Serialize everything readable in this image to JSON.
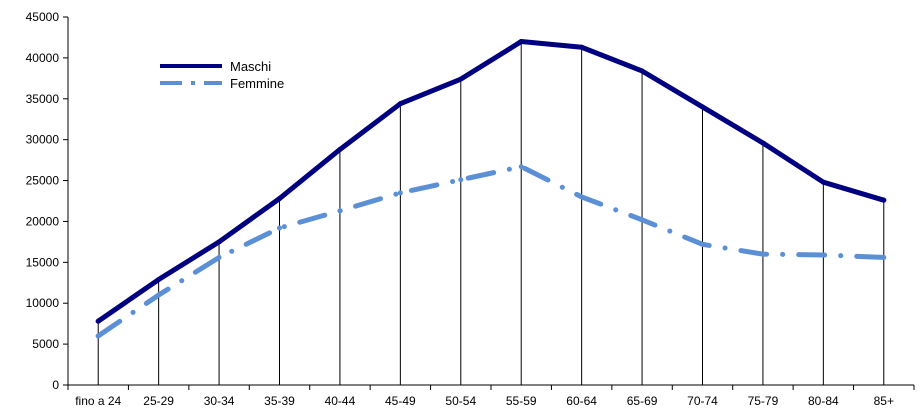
{
  "chart_data": {
    "type": "line",
    "title": "",
    "xlabel": "",
    "ylabel": "",
    "categories": [
      "fino a 24",
      "25-29",
      "30-34",
      "35-39",
      "40-44",
      "45-49",
      "50-54",
      "55-59",
      "60-64",
      "65-69",
      "70-74",
      "75-79",
      "80-84",
      "85+"
    ],
    "series": [
      {
        "name": "Maschi",
        "color": "#000080",
        "line_style": "solid",
        "values": [
          7800,
          12900,
          17500,
          22800,
          28800,
          34400,
          37400,
          42000,
          41300,
          38400,
          34000,
          29600,
          24800,
          22600
        ]
      },
      {
        "name": "Femmine",
        "color": "#5b8fd6",
        "line_style": "dash-dot",
        "values": [
          6000,
          11000,
          15600,
          19200,
          21300,
          23500,
          25100,
          26700,
          23000,
          20200,
          17200,
          16000,
          15900,
          15600
        ]
      }
    ],
    "ylim": [
      0,
      45000
    ],
    "yticks": [
      0,
      5000,
      10000,
      15000,
      20000,
      25000,
      30000,
      35000,
      40000,
      45000
    ],
    "ytick_labels": [
      "0",
      "5000",
      "10000",
      "15000",
      "20000",
      "25000",
      "30000",
      "35000",
      "40000",
      "45000"
    ],
    "grid": "vertical drop lines at each category",
    "legend_position": "top-left"
  }
}
